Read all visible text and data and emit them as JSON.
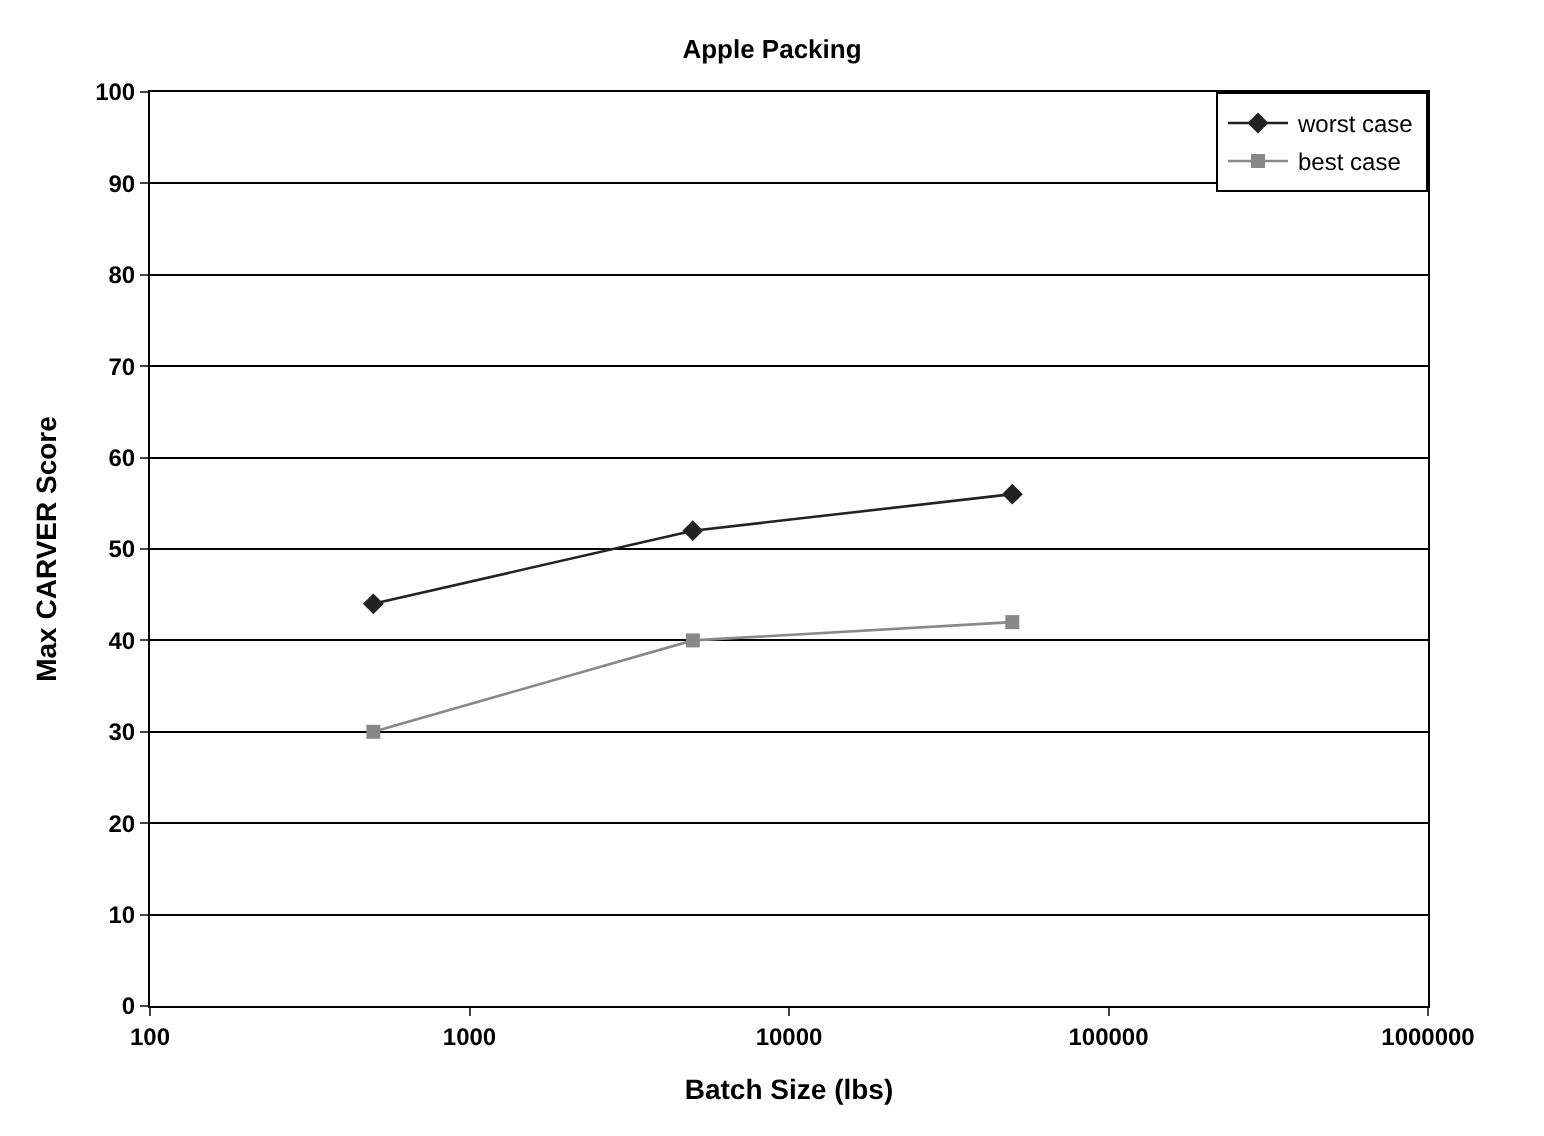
{
  "chart_data": {
    "type": "line",
    "title": "Apple Packing",
    "xlabel": "Batch Size (lbs)",
    "ylabel": "Max CARVER Score",
    "x": [
      500,
      5000,
      50000
    ],
    "series": [
      {
        "name": "worst case",
        "color": "#222222",
        "marker": "diamond",
        "values": [
          44,
          52,
          56
        ]
      },
      {
        "name": "best case",
        "color": "#888888",
        "marker": "square",
        "values": [
          30,
          40,
          42
        ]
      }
    ],
    "log": "x",
    "xlim": [
      100,
      1000000
    ],
    "xticks": [
      100,
      1000,
      10000,
      100000,
      1000000
    ],
    "ylim": [
      0,
      100
    ],
    "yticks": [
      0,
      10,
      20,
      30,
      40,
      50,
      60,
      70,
      80,
      90,
      100
    ],
    "grid": "y",
    "legend": "top right",
    "line_style": "solid"
  }
}
